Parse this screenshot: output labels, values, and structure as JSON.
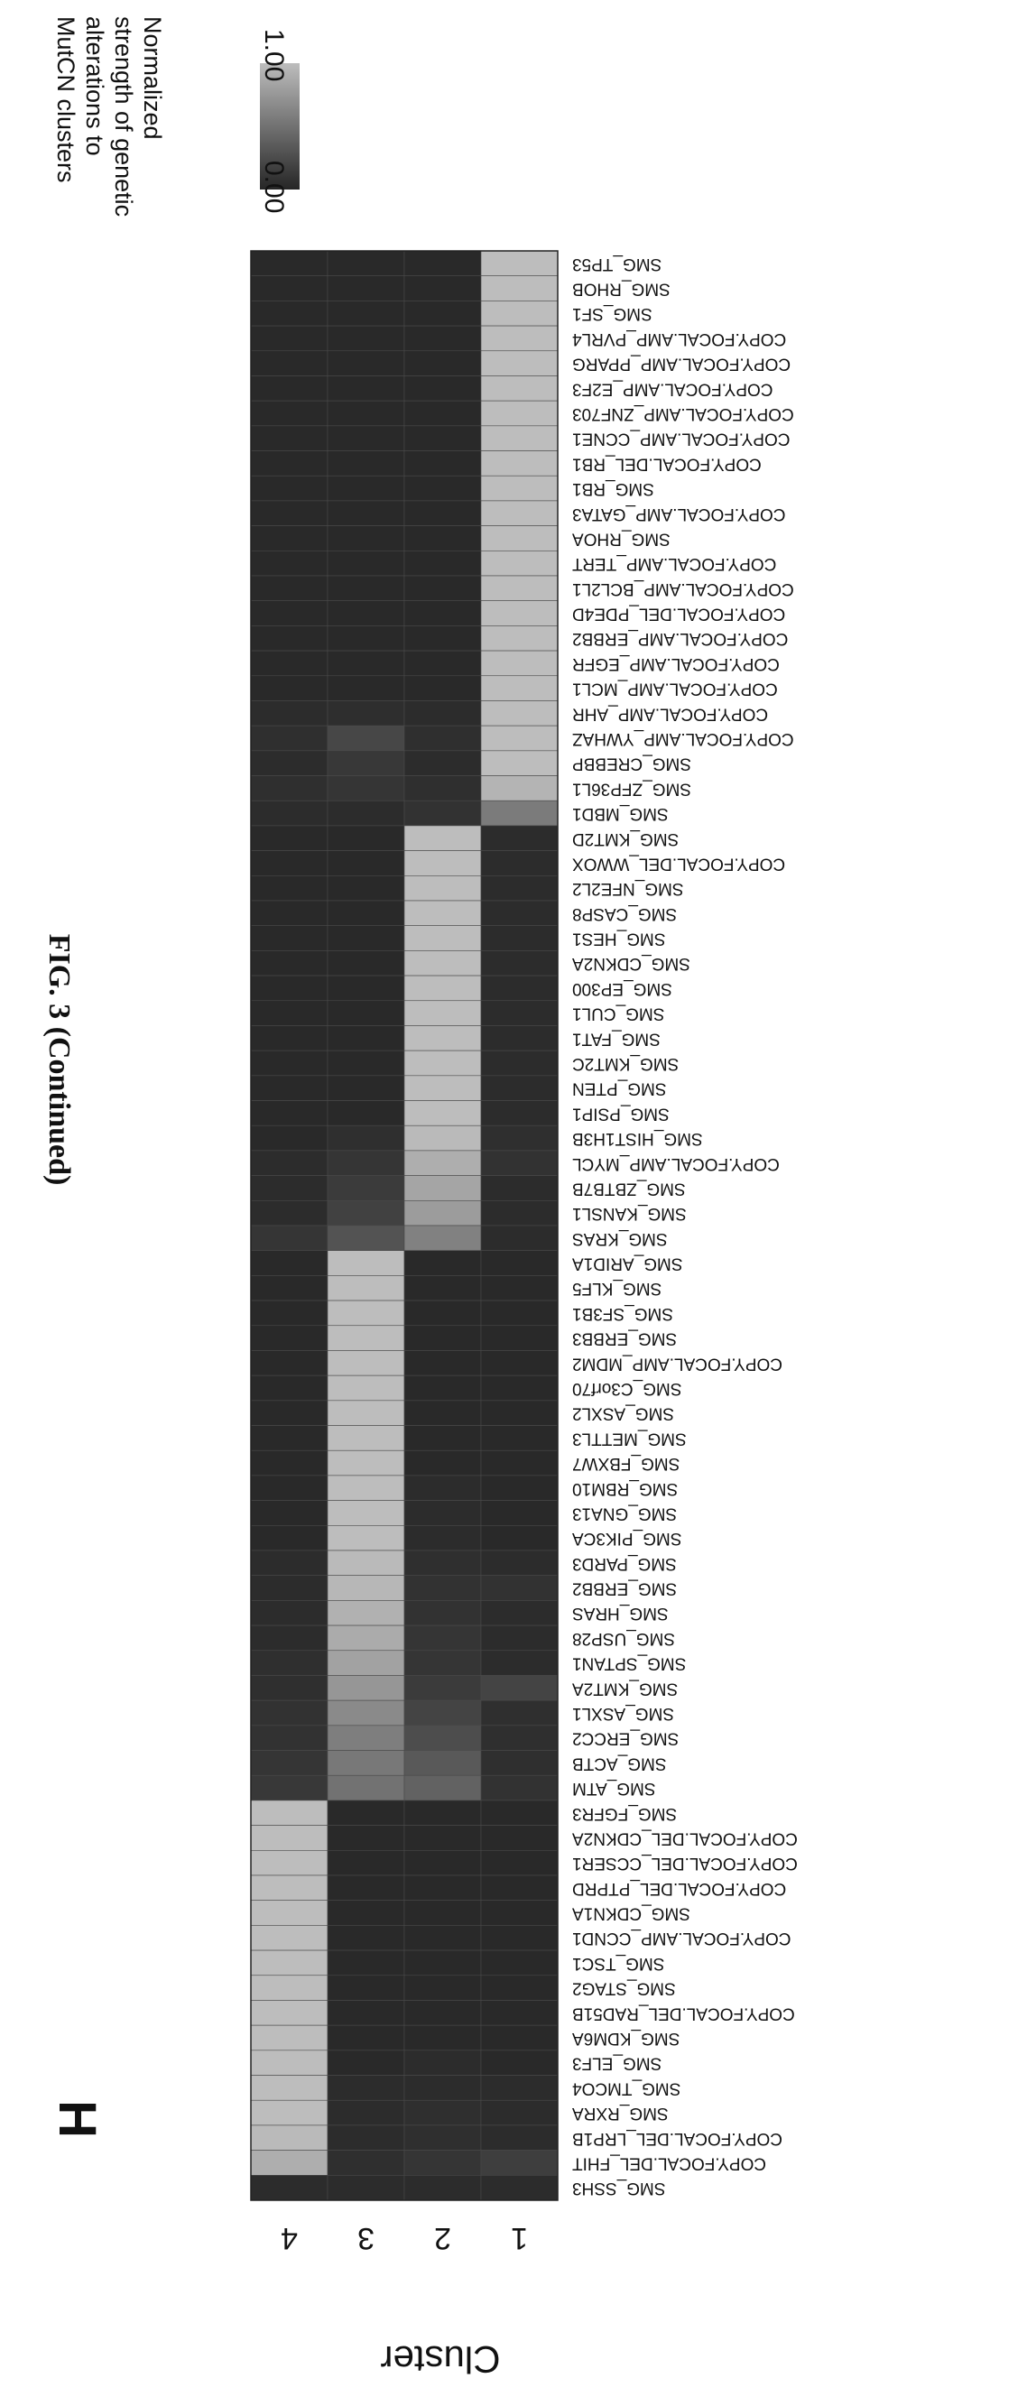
{
  "figure": {
    "title": "FIG. 3 (Continued)",
    "panel_letter": "H"
  },
  "legend": {
    "title_lines": [
      "Normalized",
      "strength of genetic",
      "alterations to",
      "MutCN clusters"
    ],
    "max_label": "1.00",
    "min_label": "0.00",
    "low_color": "#262626",
    "high_color": "#bdbdbd"
  },
  "chart_data": {
    "type": "heatmap",
    "ylabel": "Cluster",
    "columns": [
      "4",
      "3",
      "2",
      "1"
    ],
    "rows": [
      "SMG_TP53",
      "SMG_RHOB",
      "SMG_SF1",
      "COPY.FOCAL.AMP_PVRL4",
      "COPY.FOCAL.AMP_PPARG",
      "COPY.FOCAL.AMP_E2F3",
      "COPY.FOCAL.AMP_ZNF703",
      "COPY.FOCAL.AMP_CCNE1",
      "COPY.FOCAL.DEL_RB1",
      "SMG_RB1",
      "COPY.FOCAL.AMP_GATA3",
      "SMG_RHOA",
      "COPY.FOCAL.AMP_TERT",
      "COPY.FOCAL.AMP_BCL2L1",
      "COPY.FOCAL.DEL_PDE4D",
      "COPY.FOCAL.AMP_ERBB2",
      "COPY.FOCAL.AMP_EGFR",
      "COPY.FOCAL.AMP_MCL1",
      "COPY.FOCAL.AMP_AHR",
      "COPY.FOCAL.AMP_YWHAZ",
      "SMG_CREBBP",
      "SMG_ZFP36L1",
      "SMG_MBD1",
      "SMG_KMT2D",
      "COPY.FOCAL.DEL_WWOX",
      "SMG_NFE2L2",
      "SMG_CASP8",
      "SMG_HES1",
      "SMG_CDKN2A",
      "SMG_EP300",
      "SMG_CUL1",
      "SMG_FAT1",
      "SMG_KMT2C",
      "SMG_PTEN",
      "SMG_PSIP1",
      "SMG_HIST1H3B",
      "COPY.FOCAL.AMP_MYCL",
      "SMG_ZBTB7B",
      "SMG_KANSL1",
      "SMG_KRAS",
      "SMG_ARID1A",
      "SMG_KLF5",
      "SMG_SF3B1",
      "SMG_ERBB3",
      "COPY.FOCAL.AMP_MDM2",
      "SMG_C3orf70",
      "SMG_ASXL2",
      "SMG_METTL3",
      "SMG_FBXW7",
      "SMG_RBM10",
      "SMG_GNA13",
      "SMG_PIK3CA",
      "SMG_PARD3",
      "SMG_ERBB2",
      "SMG_HRAS",
      "SMG_USP28",
      "SMG_SPTAN1",
      "SMG_KMT2A",
      "SMG_ASXL1",
      "SMG_ERCC2",
      "SMG_ACTB",
      "SMG_ATM",
      "SMG_FGFR3",
      "COPY.FOCAL.DEL_CDKN2A",
      "COPY.FOCAL.DEL_CCSER1",
      "COPY.FOCAL.DEL_PTPRD",
      "SMG_CDKN1A",
      "COPY.FOCAL.AMP_CCND1",
      "SMG_TSC1",
      "SMG_STAG2",
      "COPY.FOCAL.DEL_RAD51B",
      "SMG_KDM6A",
      "SMG_ELF3",
      "SMG_TMCO4",
      "SMG_RXRA",
      "COPY.FOCAL.DEL_LRP1B",
      "COPY.FOCAL.DEL_FHIT",
      "SMG_SSH3"
    ],
    "values": [
      [
        0.02,
        0.02,
        0.02,
        1.0
      ],
      [
        0.02,
        0.02,
        0.02,
        1.0
      ],
      [
        0.02,
        0.02,
        0.02,
        1.0
      ],
      [
        0.02,
        0.02,
        0.02,
        1.0
      ],
      [
        0.02,
        0.02,
        0.02,
        1.0
      ],
      [
        0.02,
        0.02,
        0.02,
        1.0
      ],
      [
        0.02,
        0.02,
        0.02,
        1.0
      ],
      [
        0.02,
        0.02,
        0.02,
        1.0
      ],
      [
        0.02,
        0.02,
        0.02,
        1.0
      ],
      [
        0.02,
        0.02,
        0.02,
        1.0
      ],
      [
        0.02,
        0.02,
        0.02,
        1.0
      ],
      [
        0.02,
        0.02,
        0.02,
        1.0
      ],
      [
        0.02,
        0.02,
        0.02,
        1.0
      ],
      [
        0.02,
        0.02,
        0.02,
        1.0
      ],
      [
        0.02,
        0.02,
        0.02,
        1.0
      ],
      [
        0.02,
        0.02,
        0.02,
        1.0
      ],
      [
        0.02,
        0.02,
        0.02,
        1.0
      ],
      [
        0.02,
        0.02,
        0.02,
        1.0
      ],
      [
        0.04,
        0.05,
        0.04,
        1.0
      ],
      [
        0.06,
        0.22,
        0.06,
        1.0
      ],
      [
        0.04,
        0.12,
        0.04,
        1.0
      ],
      [
        0.06,
        0.1,
        0.06,
        0.94
      ],
      [
        0.04,
        0.04,
        0.08,
        0.56
      ],
      [
        0.02,
        0.02,
        1.0,
        0.04
      ],
      [
        0.02,
        0.02,
        1.0,
        0.04
      ],
      [
        0.02,
        0.02,
        1.0,
        0.04
      ],
      [
        0.02,
        0.02,
        1.0,
        0.04
      ],
      [
        0.02,
        0.02,
        1.0,
        0.04
      ],
      [
        0.02,
        0.02,
        1.0,
        0.04
      ],
      [
        0.02,
        0.02,
        1.0,
        0.04
      ],
      [
        0.02,
        0.02,
        1.0,
        0.04
      ],
      [
        0.02,
        0.02,
        1.0,
        0.04
      ],
      [
        0.02,
        0.02,
        1.0,
        0.04
      ],
      [
        0.02,
        0.02,
        1.0,
        0.04
      ],
      [
        0.02,
        0.02,
        1.0,
        0.04
      ],
      [
        0.02,
        0.06,
        0.98,
        0.06
      ],
      [
        0.04,
        0.1,
        0.9,
        0.08
      ],
      [
        0.04,
        0.14,
        0.84,
        0.04
      ],
      [
        0.04,
        0.18,
        0.78,
        0.04
      ],
      [
        0.1,
        0.3,
        0.6,
        0.04
      ],
      [
        0.02,
        1.0,
        0.02,
        0.02
      ],
      [
        0.02,
        1.0,
        0.02,
        0.02
      ],
      [
        0.02,
        1.0,
        0.02,
        0.02
      ],
      [
        0.02,
        1.0,
        0.02,
        0.02
      ],
      [
        0.02,
        1.0,
        0.02,
        0.02
      ],
      [
        0.02,
        1.0,
        0.02,
        0.02
      ],
      [
        0.02,
        1.0,
        0.02,
        0.02
      ],
      [
        0.02,
        1.0,
        0.02,
        0.02
      ],
      [
        0.02,
        1.0,
        0.02,
        0.02
      ],
      [
        0.02,
        1.0,
        0.04,
        0.02
      ],
      [
        0.02,
        1.0,
        0.04,
        0.02
      ],
      [
        0.02,
        1.0,
        0.04,
        0.02
      ],
      [
        0.04,
        0.98,
        0.06,
        0.04
      ],
      [
        0.04,
        0.96,
        0.08,
        0.08
      ],
      [
        0.04,
        0.92,
        0.08,
        0.04
      ],
      [
        0.04,
        0.88,
        0.1,
        0.04
      ],
      [
        0.06,
        0.82,
        0.1,
        0.04
      ],
      [
        0.06,
        0.74,
        0.14,
        0.2
      ],
      [
        0.08,
        0.66,
        0.2,
        0.06
      ],
      [
        0.08,
        0.58,
        0.26,
        0.06
      ],
      [
        0.1,
        0.54,
        0.34,
        0.06
      ],
      [
        0.12,
        0.5,
        0.4,
        0.08
      ],
      [
        1.0,
        0.02,
        0.02,
        0.02
      ],
      [
        1.0,
        0.02,
        0.02,
        0.02
      ],
      [
        1.0,
        0.02,
        0.02,
        0.02
      ],
      [
        1.0,
        0.02,
        0.02,
        0.02
      ],
      [
        1.0,
        0.02,
        0.02,
        0.02
      ],
      [
        1.0,
        0.02,
        0.02,
        0.02
      ],
      [
        1.0,
        0.02,
        0.02,
        0.02
      ],
      [
        1.0,
        0.02,
        0.02,
        0.02
      ],
      [
        1.0,
        0.02,
        0.02,
        0.02
      ],
      [
        1.0,
        0.02,
        0.02,
        0.02
      ],
      [
        1.0,
        0.02,
        0.04,
        0.02
      ],
      [
        1.0,
        0.04,
        0.04,
        0.04
      ],
      [
        1.0,
        0.04,
        0.06,
        0.04
      ],
      [
        0.98,
        0.04,
        0.06,
        0.04
      ],
      [
        0.9,
        0.06,
        0.1,
        0.16
      ],
      [
        0.04,
        0.04,
        0.04,
        0.04
      ]
    ]
  }
}
